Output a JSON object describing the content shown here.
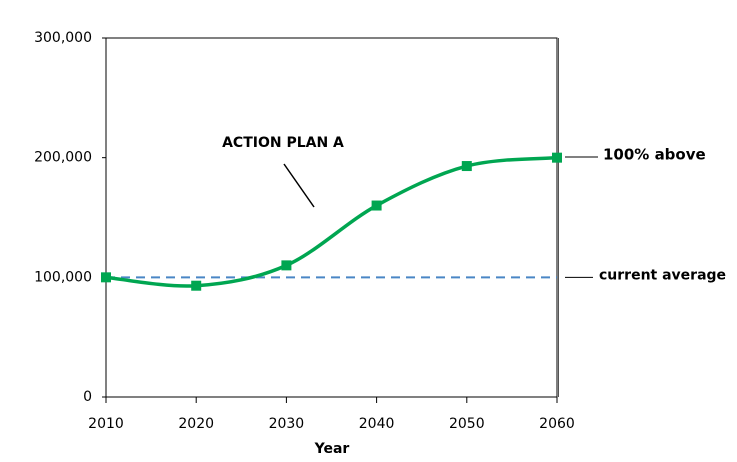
{
  "chart_data": {
    "type": "line",
    "x": [
      2010,
      2020,
      2030,
      2040,
      2050,
      2060
    ],
    "series": [
      {
        "name": "ACTION PLAN A",
        "color": "#00a651",
        "values": [
          100000,
          93000,
          110000,
          160000,
          193000,
          200000
        ]
      }
    ],
    "xlim": [
      2010,
      2060
    ],
    "xticks": [
      2010,
      2020,
      2030,
      2040,
      2050,
      2060
    ],
    "ylim": [
      0,
      300000
    ],
    "yticks": [
      0,
      {
        "value": 100000,
        "label": "100,000"
      },
      {
        "value": 200000,
        "label": "200,000"
      },
      {
        "value": 300000,
        "label": "300,000"
      }
    ],
    "xlabel": "Year",
    "reference_lines": [
      {
        "value": 100000,
        "label": "current average",
        "color": "#4a86c5"
      }
    ],
    "annotations": [
      "100% above"
    ]
  }
}
